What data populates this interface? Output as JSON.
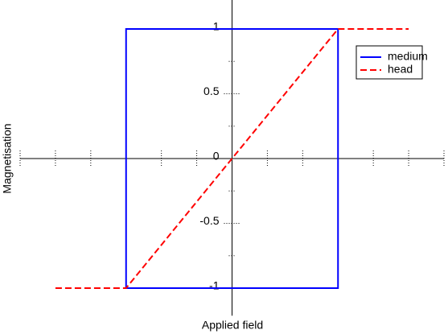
{
  "chart_data": {
    "type": "line",
    "x_label": "Applied field",
    "y_label": "Magnetisation",
    "xlim": [
      -6,
      6
    ],
    "xticks": [
      -6,
      -5,
      -4,
      -3,
      -2,
      -1,
      0,
      1,
      2,
      3,
      4,
      5,
      6
    ],
    "ylim": [
      -1.2,
      1.2
    ],
    "yticks": [
      -1,
      -0.5,
      0,
      0.5,
      1
    ],
    "yminorticks": [
      -0.75,
      -0.25,
      0.25,
      0.75
    ],
    "legend": "upper right",
    "series": [
      {
        "name": "medium",
        "color": "#0000ff",
        "dash": false,
        "x": [
          -3,
          -3,
          3,
          3,
          -3,
          -3
        ],
        "values": [
          0.7,
          1,
          1,
          -1,
          -1,
          1
        ]
      },
      {
        "name": "head",
        "color": "#ff0000",
        "dash": true,
        "x": [
          -5,
          -3,
          3,
          5
        ],
        "values": [
          -1,
          -1,
          1,
          1
        ]
      }
    ]
  }
}
